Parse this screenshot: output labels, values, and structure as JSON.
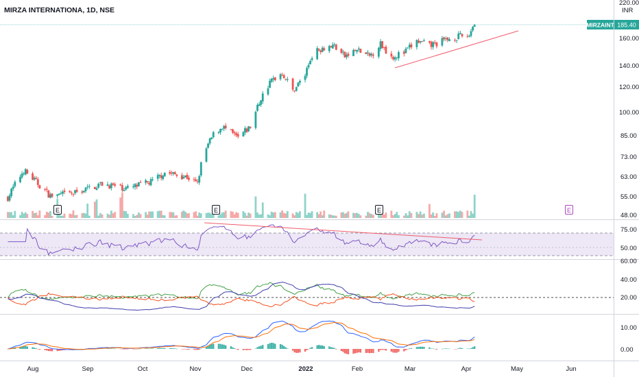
{
  "chart_data": {
    "type": "candlestick",
    "title": "MIRZA INTERNATIONA, 1D, NSE",
    "symbol": "MIRZAINT",
    "last_price": "185.40",
    "currency": "INR",
    "colors": {
      "up": "#26a69a",
      "down": "#ef5350",
      "up_vol": "#8fd3c9",
      "down_vol": "#f5a9a7",
      "rsi_line": "#7e57c2",
      "rsi_band": "#ede7f6",
      "trend": "#f05a6a",
      "di_plus": "#43a047",
      "di_minus": "#f4511e",
      "adx": "#3f3dab",
      "macd": "#2962ff",
      "signal": "#ff6d00"
    },
    "price_axis_ticks": [
      "220.00",
      "160.00",
      "140.00",
      "120.00",
      "100.00",
      "85.00",
      "73.00",
      "63.00",
      "55.00",
      "48.00"
    ],
    "rsi_axis_ticks": [
      "75.00",
      "50.00"
    ],
    "dmi_axis_ticks": [
      "60.00",
      "40.00",
      "20.00"
    ],
    "macd_axis_ticks": [
      "10.00",
      "0.00"
    ],
    "x_labels": [
      "Aug",
      "Sep",
      "Oct",
      "Nov",
      "Dec",
      "2022",
      "Feb",
      "Mar",
      "Apr",
      "May",
      "Jun"
    ],
    "earnings_markers": [
      "E",
      "E",
      "E",
      "E"
    ],
    "price_keypoints": [
      {
        "d": "2021-07-21",
        "p": 57
      },
      {
        "d": "2021-07-28",
        "p": 66
      },
      {
        "d": "2021-08-05",
        "p": 60
      },
      {
        "d": "2021-08-12",
        "p": 55
      },
      {
        "d": "2021-08-25",
        "p": 56
      },
      {
        "d": "2021-09-10",
        "p": 60
      },
      {
        "d": "2021-09-24",
        "p": 58
      },
      {
        "d": "2021-10-08",
        "p": 61
      },
      {
        "d": "2021-10-15",
        "p": 65
      },
      {
        "d": "2021-10-28",
        "p": 63
      },
      {
        "d": "2021-11-03",
        "p": 60
      },
      {
        "d": "2021-11-06",
        "p": 73
      },
      {
        "d": "2021-11-12",
        "p": 85
      },
      {
        "d": "2021-11-17",
        "p": 90
      },
      {
        "d": "2021-11-26",
        "p": 83
      },
      {
        "d": "2021-12-03",
        "p": 90
      },
      {
        "d": "2021-12-09",
        "p": 110
      },
      {
        "d": "2021-12-15",
        "p": 125
      },
      {
        "d": "2021-12-21",
        "p": 132
      },
      {
        "d": "2021-12-27",
        "p": 116
      },
      {
        "d": "2022-01-03",
        "p": 130
      },
      {
        "d": "2022-01-07",
        "p": 150
      },
      {
        "d": "2022-01-13",
        "p": 158
      },
      {
        "d": "2022-01-20",
        "p": 160
      },
      {
        "d": "2022-01-26",
        "p": 148
      },
      {
        "d": "2022-02-02",
        "p": 155
      },
      {
        "d": "2022-02-09",
        "p": 148
      },
      {
        "d": "2022-02-15",
        "p": 162
      },
      {
        "d": "2022-02-21",
        "p": 148
      },
      {
        "d": "2022-02-28",
        "p": 152
      },
      {
        "d": "2022-03-07",
        "p": 165
      },
      {
        "d": "2022-03-14",
        "p": 160
      },
      {
        "d": "2022-03-21",
        "p": 165
      },
      {
        "d": "2022-03-28",
        "p": 170
      },
      {
        "d": "2022-04-05",
        "p": 172
      },
      {
        "d": "2022-04-07",
        "p": 185.4
      }
    ]
  }
}
